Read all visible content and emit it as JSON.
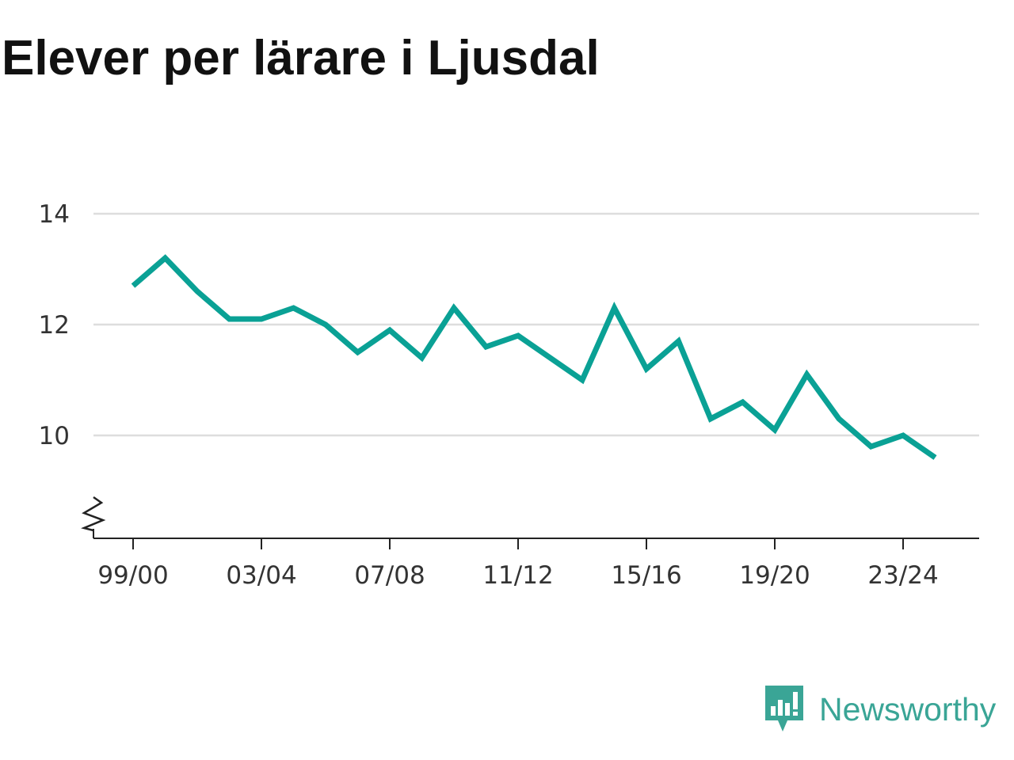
{
  "chart_data": {
    "type": "line",
    "title": "Elever per lärare i Ljusdal",
    "xlabel": "",
    "ylabel": "",
    "ylim": [
      8.1,
      14.2
    ],
    "yticks": [
      10,
      12,
      14
    ],
    "grid": true,
    "axis_break": true,
    "line_color": "#0aa195",
    "x": [
      "99/00",
      "00/01",
      "01/02",
      "02/03",
      "03/04",
      "04/05",
      "05/06",
      "06/07",
      "07/08",
      "08/09",
      "09/10",
      "10/11",
      "11/12",
      "12/13",
      "13/14",
      "14/15",
      "15/16",
      "16/17",
      "17/18",
      "18/19",
      "19/20",
      "20/21",
      "21/22",
      "22/23",
      "23/24",
      "24/25"
    ],
    "xtick_labels": [
      "99/00",
      "03/04",
      "07/08",
      "11/12",
      "15/16",
      "19/20",
      "23/24"
    ],
    "series": [
      {
        "values": [
          12.7,
          13.2,
          12.6,
          12.1,
          12.1,
          12.3,
          12.0,
          11.5,
          11.9,
          11.4,
          12.3,
          11.6,
          11.8,
          11.4,
          11.0,
          12.3,
          11.2,
          11.7,
          10.3,
          10.6,
          10.1,
          11.1,
          10.3,
          9.8,
          10.0,
          9.6
        ]
      }
    ]
  },
  "brand": {
    "name": "Newsworthy",
    "icon": "newsworthy-logo-icon",
    "color": "#3aa596"
  }
}
